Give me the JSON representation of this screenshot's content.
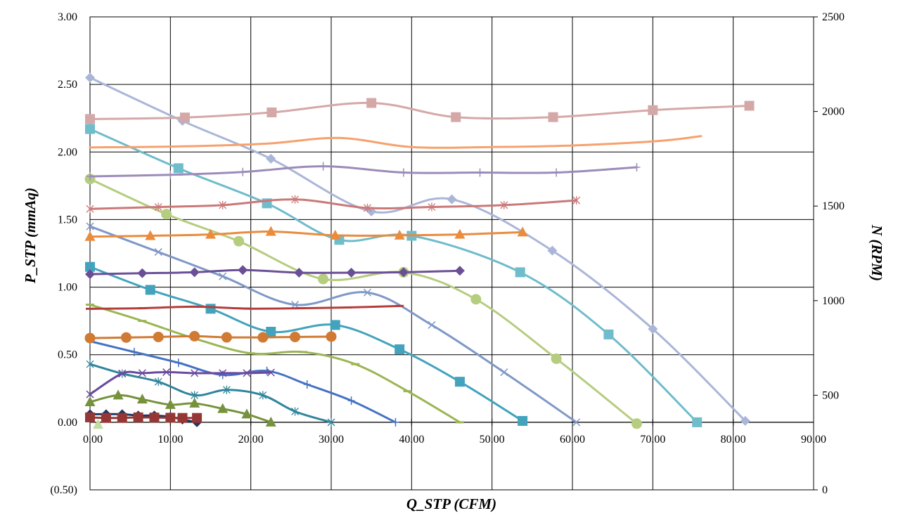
{
  "chart_data": {
    "type": "line",
    "xlabel": "Q_STP (CFM)",
    "ylabel": "P_STP (mmAq)",
    "y2label": "N (RPM)",
    "xlim": [
      0,
      90
    ],
    "ylim": [
      -0.5,
      3.0
    ],
    "y2lim": [
      0,
      2500
    ],
    "grid": true,
    "x_ticks": [
      "0.00",
      "10.00",
      "20.00",
      "30.00",
      "40.00",
      "50.00",
      "60.00",
      "70.00",
      "80.00",
      "90.00"
    ],
    "y_ticks": [
      {
        "value": -0.5,
        "label": "(0.50)",
        "color": "#ff0000"
      },
      {
        "value": 0.0,
        "label": "0.00"
      },
      {
        "value": 0.5,
        "label": "0.50"
      },
      {
        "value": 1.0,
        "label": "1.00"
      },
      {
        "value": 1.5,
        "label": "1.50"
      },
      {
        "value": 2.0,
        "label": "2.00"
      },
      {
        "value": 2.5,
        "label": "2.50"
      },
      {
        "value": 3.0,
        "label": "3.00"
      }
    ],
    "y2_ticks": [
      "0",
      "500",
      "1000",
      "1500",
      "2000",
      "2500"
    ],
    "series": [
      {
        "axis": "left",
        "color": "#aab6d8",
        "marker": "diamond",
        "x": [
          0,
          11.5,
          22.5,
          35,
          45,
          57.5,
          70,
          81.5
        ],
        "y": [
          2.55,
          2.23,
          1.95,
          1.56,
          1.65,
          1.27,
          0.69,
          0.01
        ]
      },
      {
        "axis": "left",
        "color": "#6fbccb",
        "marker": "square",
        "x": [
          0,
          11,
          22,
          31,
          40,
          53.5,
          64.5,
          75.5
        ],
        "y": [
          2.17,
          1.88,
          1.62,
          1.35,
          1.38,
          1.11,
          0.65,
          0.0
        ]
      },
      {
        "axis": "left",
        "color": "#b5cd7f",
        "marker": "circle",
        "x": [
          0,
          9.5,
          18.5,
          29,
          39,
          48,
          58,
          68
        ],
        "y": [
          1.8,
          1.54,
          1.34,
          1.06,
          1.11,
          0.91,
          0.47,
          -0.01
        ]
      },
      {
        "axis": "left",
        "color": "#7f98c8",
        "marker": "x",
        "x": [
          0,
          8.5,
          16.5,
          25.5,
          34.5,
          42.5,
          51.5,
          60.5
        ],
        "y": [
          1.45,
          1.26,
          1.08,
          0.87,
          0.96,
          0.72,
          0.37,
          0.0
        ]
      },
      {
        "axis": "left",
        "color": "#43a3bd",
        "marker": "square",
        "x": [
          0,
          7.5,
          15,
          22.5,
          30.5,
          38.5,
          46,
          53.8
        ],
        "y": [
          1.15,
          0.98,
          0.84,
          0.67,
          0.72,
          0.54,
          0.3,
          0.01
        ]
      },
      {
        "axis": "left",
        "color": "#9bb553",
        "marker": "dash",
        "x": [
          0,
          6.5,
          13,
          20,
          26.5,
          33,
          39.5,
          46
        ],
        "y": [
          0.87,
          0.75,
          0.62,
          0.51,
          0.52,
          0.43,
          0.23,
          0.0
        ]
      },
      {
        "axis": "left",
        "color": "#4472c4",
        "marker": "plus",
        "x": [
          0,
          5.5,
          11,
          16.5,
          22,
          27,
          32.5,
          38
        ],
        "y": [
          0.6,
          0.52,
          0.44,
          0.35,
          0.38,
          0.28,
          0.16,
          0.0
        ]
      },
      {
        "axis": "left",
        "color": "#31859c",
        "marker": "star",
        "x": [
          0,
          4,
          8.5,
          13,
          17,
          21.5,
          25.5,
          30
        ],
        "y": [
          0.43,
          0.36,
          0.3,
          0.2,
          0.24,
          0.2,
          0.08,
          0.0
        ]
      },
      {
        "axis": "left",
        "color": "#76923c",
        "marker": "triangle",
        "x": [
          0,
          3.5,
          6.5,
          10,
          13,
          16.5,
          19.5,
          22.5
        ],
        "y": [
          0.15,
          0.2,
          0.17,
          0.13,
          0.14,
          0.1,
          0.06,
          0.0
        ]
      },
      {
        "axis": "left",
        "color": "#1f3864",
        "marker": "diamond",
        "x": [
          0,
          2,
          4,
          6,
          8,
          10,
          11.5,
          13.3
        ],
        "y": [
          0.06,
          0.06,
          0.06,
          0.05,
          0.05,
          0.04,
          0.02,
          0.0
        ]
      },
      {
        "axis": "right",
        "color": "#d5a8a8",
        "marker": "square",
        "x": [
          0,
          11.8,
          22.6,
          35,
          45.5,
          57.6,
          70,
          82
        ],
        "y": [
          1960,
          1968,
          1995,
          2045,
          1970,
          1970,
          2007,
          2030
        ]
      },
      {
        "axis": "right",
        "color": "#f6a16e",
        "marker": "none",
        "x": [
          0,
          11,
          22,
          31,
          40,
          50,
          60,
          71,
          76
        ],
        "y": [
          1810,
          1815,
          1830,
          1860,
          1812,
          1812,
          1820,
          1845,
          1870
        ]
      },
      {
        "axis": "right",
        "color": "#9c8bba",
        "marker": "plus",
        "x": [
          0,
          10,
          19,
          29,
          39,
          48.5,
          58,
          68
        ],
        "y": [
          1657,
          1665,
          1680,
          1710,
          1677,
          1677,
          1677,
          1705
        ]
      },
      {
        "axis": "right",
        "color": "#cb7878",
        "marker": "star",
        "x": [
          0,
          8.5,
          16.5,
          25.5,
          34.5,
          42.5,
          51.5,
          60.5
        ],
        "y": [
          1485,
          1495,
          1505,
          1535,
          1490,
          1495,
          1505,
          1530
        ]
      },
      {
        "axis": "right",
        "color": "#ea8b3d",
        "marker": "triangle",
        "x": [
          0,
          7.5,
          15,
          22.5,
          30.5,
          38.5,
          46,
          53.8
        ],
        "y": [
          1338,
          1343,
          1350,
          1365,
          1345,
          1345,
          1350,
          1362
        ]
      },
      {
        "axis": "right",
        "color": "#6a4f96",
        "marker": "diamond",
        "x": [
          0,
          6.5,
          13,
          19,
          26,
          32.5,
          39,
          46
        ],
        "y": [
          1140,
          1145,
          1150,
          1162,
          1148,
          1148,
          1150,
          1158
        ]
      },
      {
        "axis": "right",
        "color": "#b43d3b",
        "marker": "dash",
        "x": [
          0,
          6.5,
          13,
          19.5,
          26,
          32,
          38.5
        ],
        "y": [
          957,
          960,
          968,
          958,
          960,
          964,
          972
        ]
      },
      {
        "axis": "right",
        "color": "#d07a34",
        "marker": "circle",
        "x": [
          0,
          4.5,
          8.5,
          13,
          17,
          21.5,
          25.5,
          30
        ],
        "y": [
          802,
          805,
          808,
          812,
          806,
          806,
          808,
          810
        ]
      },
      {
        "axis": "right",
        "color": "#6a4a9e",
        "marker": "x",
        "x": [
          0,
          4,
          6.5,
          9.5,
          13,
          16.5,
          19.5,
          22.5
        ],
        "y": [
          505,
          615,
          617,
          622,
          617,
          617,
          617,
          620
        ]
      },
      {
        "axis": "right",
        "color": "#c5dca1",
        "marker": "triangle",
        "x": [
          1
        ],
        "y": [
          345
        ]
      },
      {
        "axis": "right",
        "color": "#953735",
        "marker": "square",
        "x": [
          0,
          2,
          4,
          6,
          8,
          10,
          11.5,
          13.3
        ],
        "y": [
          383,
          380,
          380,
          383,
          382,
          381,
          380,
          380
        ]
      }
    ]
  }
}
